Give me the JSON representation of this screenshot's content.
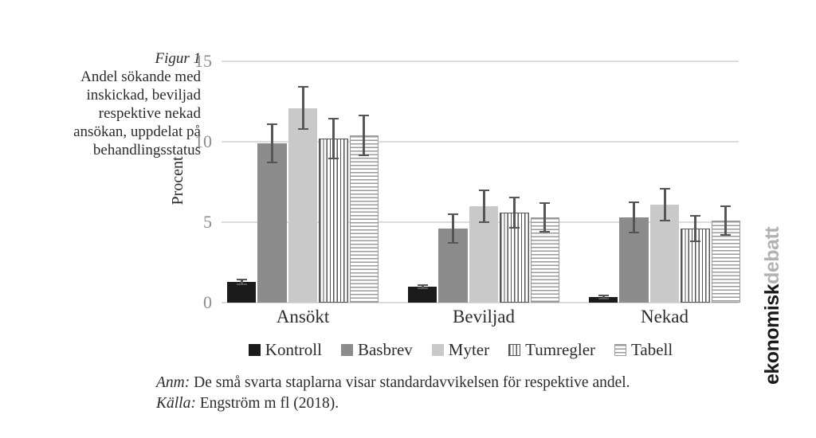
{
  "figure": {
    "label": "Figur 1",
    "caption_lines": [
      "Andel sökande med",
      "inskickad, beviljad",
      "respektive nekad",
      "ansökan, uppdelat på",
      "behandlingsstatus"
    ]
  },
  "chart_data": {
    "type": "bar",
    "title": "",
    "xlabel": "",
    "ylabel": "Procent",
    "ylim": [
      0,
      15
    ],
    "yticks": [
      0,
      5,
      10,
      15
    ],
    "grid": true,
    "legend_position": "bottom",
    "categories": [
      "Ansökt",
      "Beviljad",
      "Nekad"
    ],
    "series": [
      {
        "name": "Kontroll",
        "pattern": "solid",
        "color": "#1b1b1b",
        "values": [
          1.3,
          1.0,
          0.35
        ],
        "stderr": [
          0.15,
          0.1,
          0.1
        ]
      },
      {
        "name": "Basbrev",
        "pattern": "solid",
        "color": "#8c8c8c",
        "values": [
          9.9,
          4.6,
          5.3
        ],
        "stderr": [
          1.2,
          0.9,
          0.95
        ]
      },
      {
        "name": "Myter",
        "pattern": "solid",
        "color": "#c9c9c9",
        "values": [
          12.1,
          6.0,
          6.1
        ],
        "stderr": [
          1.3,
          1.0,
          1.0
        ]
      },
      {
        "name": "Tumregler",
        "pattern": "vertical-stripes",
        "color": "#ffffff",
        "stripe_color": "#565656",
        "values": [
          10.2,
          5.6,
          4.6
        ],
        "stderr": [
          1.25,
          0.95,
          0.8
        ]
      },
      {
        "name": "Tabell",
        "pattern": "horizontal-stripes",
        "color": "#ffffff",
        "stripe_color": "#9a9a9a",
        "values": [
          10.4,
          5.3,
          5.1
        ],
        "stderr": [
          1.25,
          0.9,
          0.9
        ]
      }
    ]
  },
  "notes": {
    "anm_label": "Anm:",
    "anm_text": "De små svarta staplarna visar standardavvikelsen för respektive andel.",
    "kalla_label": "Källa:",
    "kalla_text": "Engström m fl (2018)."
  },
  "brand": {
    "black": "ekonomisk",
    "gray": "debatt"
  },
  "colors": {
    "grid": "#dcdcdc",
    "tick_label": "#8c8c8c",
    "text": "#2b2b2b",
    "errorbar": "#565656"
  }
}
